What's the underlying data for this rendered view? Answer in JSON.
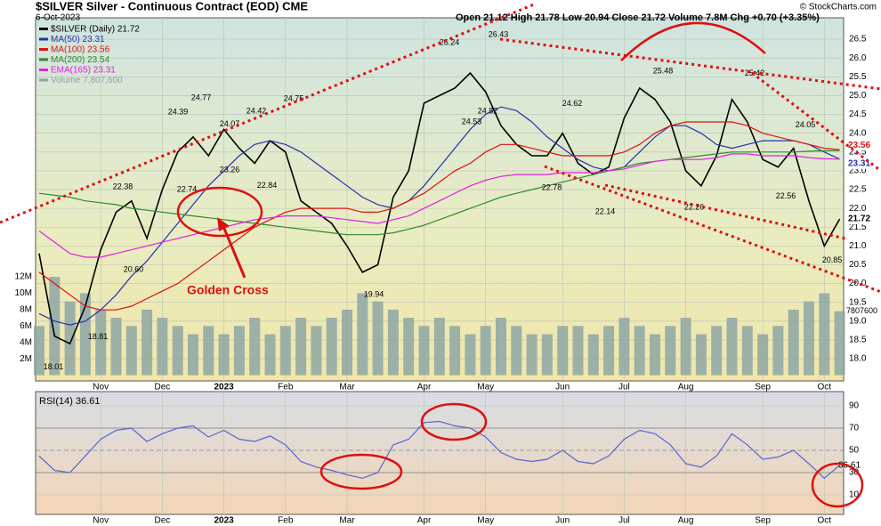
{
  "chart_data": [
    {
      "type": "line",
      "title": "$SILVER Silver - Continuous Contract (EOD) CME",
      "subtitle": "6-Oct-2023",
      "quote": "Open 21.12 High 21.78 Low 20.94 Close 21.72 Volume 7.8M Chg +0.70 (+3.35%)",
      "credit": "© StockCharts.com",
      "annotation": "Golden Cross",
      "categories": [
        null,
        null,
        null,
        null,
        "Nov",
        null,
        null,
        null,
        "Dec",
        null,
        null,
        null,
        "2023",
        null,
        null,
        null,
        "Feb",
        null,
        null,
        null,
        "Mar",
        null,
        null,
        null,
        null,
        "Apr",
        null,
        null,
        null,
        "May",
        null,
        null,
        null,
        null,
        "Jun",
        null,
        null,
        null,
        "Jul",
        null,
        null,
        null,
        "Aug",
        null,
        null,
        null,
        null,
        "Sep",
        null,
        null,
        null,
        "Oct",
        null
      ],
      "series": [
        {
          "name": "$SILVER (Daily) 21.72",
          "color": "#000000",
          "values": [
            20.8,
            18.6,
            18.4,
            19.4,
            20.9,
            21.9,
            22.2,
            21.2,
            22.5,
            23.5,
            23.9,
            23.4,
            24.1,
            23.6,
            23.2,
            23.8,
            23.5,
            22.2,
            21.9,
            21.6,
            21.0,
            20.3,
            20.5,
            22.3,
            23.0,
            24.8,
            25.0,
            25.2,
            25.6,
            25.1,
            24.2,
            23.7,
            23.4,
            23.4,
            24.0,
            23.2,
            22.9,
            23.1,
            24.4,
            25.2,
            24.9,
            24.3,
            23.0,
            22.6,
            23.4,
            24.9,
            24.3,
            23.3,
            23.1,
            23.6,
            22.2,
            21.0,
            21.72
          ]
        },
        {
          "name": "MA(50) 23.31",
          "color": "#2233aa",
          "values": [
            19.2,
            19.0,
            18.9,
            19.0,
            19.3,
            19.7,
            20.2,
            20.6,
            21.1,
            21.6,
            22.1,
            22.6,
            23.0,
            23.4,
            23.7,
            23.8,
            23.7,
            23.5,
            23.2,
            22.9,
            22.6,
            22.3,
            22.1,
            22.0,
            22.2,
            22.6,
            23.1,
            23.6,
            24.1,
            24.5,
            24.7,
            24.6,
            24.3,
            23.9,
            23.6,
            23.3,
            23.1,
            23.0,
            23.1,
            23.5,
            23.9,
            24.2,
            24.2,
            24.0,
            23.7,
            23.6,
            23.7,
            23.8,
            23.8,
            23.8,
            23.7,
            23.5,
            23.31
          ]
        },
        {
          "name": "MA(100) 23.56",
          "color": "#dd1111",
          "values": [
            20.3,
            20.0,
            19.7,
            19.4,
            19.3,
            19.3,
            19.4,
            19.6,
            19.8,
            20.0,
            20.3,
            20.6,
            20.9,
            21.2,
            21.5,
            21.7,
            21.9,
            22.0,
            22.0,
            22.0,
            22.0,
            21.9,
            21.9,
            22.0,
            22.2,
            22.4,
            22.7,
            23.0,
            23.2,
            23.5,
            23.7,
            23.7,
            23.6,
            23.5,
            23.4,
            23.4,
            23.4,
            23.4,
            23.5,
            23.7,
            24.0,
            24.2,
            24.3,
            24.3,
            24.3,
            24.3,
            24.2,
            24.0,
            23.9,
            23.8,
            23.7,
            23.6,
            23.56
          ]
        },
        {
          "name": "MA(200) 23.54",
          "color": "#2e8b2e",
          "values": [
            22.4,
            22.35,
            22.3,
            22.2,
            22.15,
            22.1,
            22.0,
            21.95,
            21.9,
            21.85,
            21.8,
            21.75,
            21.7,
            21.65,
            21.6,
            21.55,
            21.5,
            21.45,
            21.4,
            21.35,
            21.3,
            21.3,
            21.3,
            21.35,
            21.45,
            21.55,
            21.7,
            21.85,
            22.0,
            22.15,
            22.3,
            22.4,
            22.5,
            22.6,
            22.7,
            22.8,
            22.9,
            23.0,
            23.1,
            23.2,
            23.25,
            23.3,
            23.35,
            23.4,
            23.45,
            23.5,
            23.5,
            23.5,
            23.5,
            23.5,
            23.52,
            23.53,
            23.54
          ]
        },
        {
          "name": "EMA(165) 23.31",
          "color": "#e020e0",
          "values": [
            21.4,
            21.1,
            20.8,
            20.7,
            20.7,
            20.8,
            20.9,
            21.0,
            21.1,
            21.2,
            21.3,
            21.4,
            21.5,
            21.6,
            21.7,
            21.75,
            21.8,
            21.8,
            21.8,
            21.75,
            21.7,
            21.65,
            21.6,
            21.7,
            21.8,
            22.0,
            22.2,
            22.4,
            22.6,
            22.75,
            22.85,
            22.9,
            22.9,
            22.9,
            22.95,
            22.95,
            22.95,
            23.0,
            23.05,
            23.15,
            23.25,
            23.3,
            23.3,
            23.3,
            23.35,
            23.45,
            23.45,
            23.4,
            23.4,
            23.4,
            23.35,
            23.32,
            23.31
          ]
        },
        {
          "name": "Volume 7,807,600",
          "color": "#8ea6a4",
          "axis": "y2",
          "values": [
            6,
            12,
            9,
            10,
            8,
            7,
            6,
            8,
            7,
            6,
            5,
            6,
            5,
            6,
            7,
            5,
            6,
            7,
            6,
            7,
            8,
            10,
            9,
            8,
            7,
            6,
            7,
            6,
            5,
            6,
            7,
            6,
            5,
            5,
            6,
            6,
            5,
            6,
            7,
            6,
            5,
            6,
            7,
            5,
            6,
            7,
            6,
            5,
            6,
            8,
            9,
            10,
            7.8076
          ]
        }
      ],
      "volume_tag": 7807600,
      "price_annotations": [
        24.39,
        24.77,
        24.07,
        24.42,
        24.75,
        22.38,
        22.74,
        23.26,
        22.84,
        {
          "value": 20.6,
          "label": "20.60"
        },
        18.81,
        18.01,
        19.94,
        26.24,
        26.43,
        24.82,
        24.53,
        24.62,
        22.78,
        22.14,
        25.48,
        22.26,
        25.42,
        24.05,
        22.56,
        20.85
      ],
      "ylim": [
        17.41,
        27.07
      ],
      "yticks": [
        {
          "value": 18,
          "label": "18.0"
        },
        {
          "value": 18.5,
          "label": "18.5"
        },
        {
          "value": 19,
          "label": "19.0"
        },
        {
          "value": 19.5,
          "label": "19.5"
        },
        {
          "value": 20,
          "label": "20.0"
        },
        {
          "value": 20.5,
          "label": "20.5"
        },
        {
          "value": 21,
          "label": "21.0"
        },
        {
          "value": 21.5,
          "label": "21.5"
        },
        {
          "value": 22,
          "label": "22.0"
        },
        {
          "value": 22.5,
          "label": "22.5"
        },
        {
          "value": 23,
          "label": "23.0"
        },
        {
          "value": 23.5,
          "label": "23.5"
        },
        {
          "value": 24,
          "label": "24.0"
        },
        {
          "value": 24.5,
          "label": "24.5"
        },
        {
          "value": 25,
          "label": "25.0"
        },
        {
          "value": 25.5,
          "label": "25.5"
        },
        {
          "value": 26,
          "label": "26.0"
        },
        {
          "value": 26.5,
          "label": "26.5"
        }
      ],
      "y2lim": [
        -0.7,
        43.6
      ],
      "y2ticks": [
        {
          "value": 2,
          "label": "2M"
        },
        {
          "value": 4,
          "label": "4M"
        },
        {
          "value": 6,
          "label": "6M"
        },
        {
          "value": 8,
          "label": "8M"
        },
        {
          "value": 10,
          "label": "10M"
        },
        {
          "value": 12,
          "label": "12M"
        }
      ],
      "grid": true
    },
    {
      "type": "line",
      "title": "RSI(14) 36.61",
      "series": [
        {
          "name": "RSI(14)",
          "color": "#5566d0",
          "values": [
            45,
            32,
            30,
            45,
            60,
            68,
            70,
            58,
            65,
            70,
            72,
            62,
            68,
            60,
            58,
            63,
            55,
            40,
            35,
            32,
            28,
            25,
            30,
            55,
            60,
            75,
            76,
            72,
            70,
            62,
            48,
            42,
            40,
            42,
            50,
            40,
            38,
            45,
            60,
            68,
            65,
            55,
            38,
            35,
            45,
            65,
            55,
            42,
            44,
            50,
            38,
            25,
            36.61
          ]
        }
      ],
      "ylim": [
        -7.6,
        102.8
      ],
      "yticks": [
        10,
        30,
        50,
        70,
        90
      ],
      "grid": true
    }
  ]
}
